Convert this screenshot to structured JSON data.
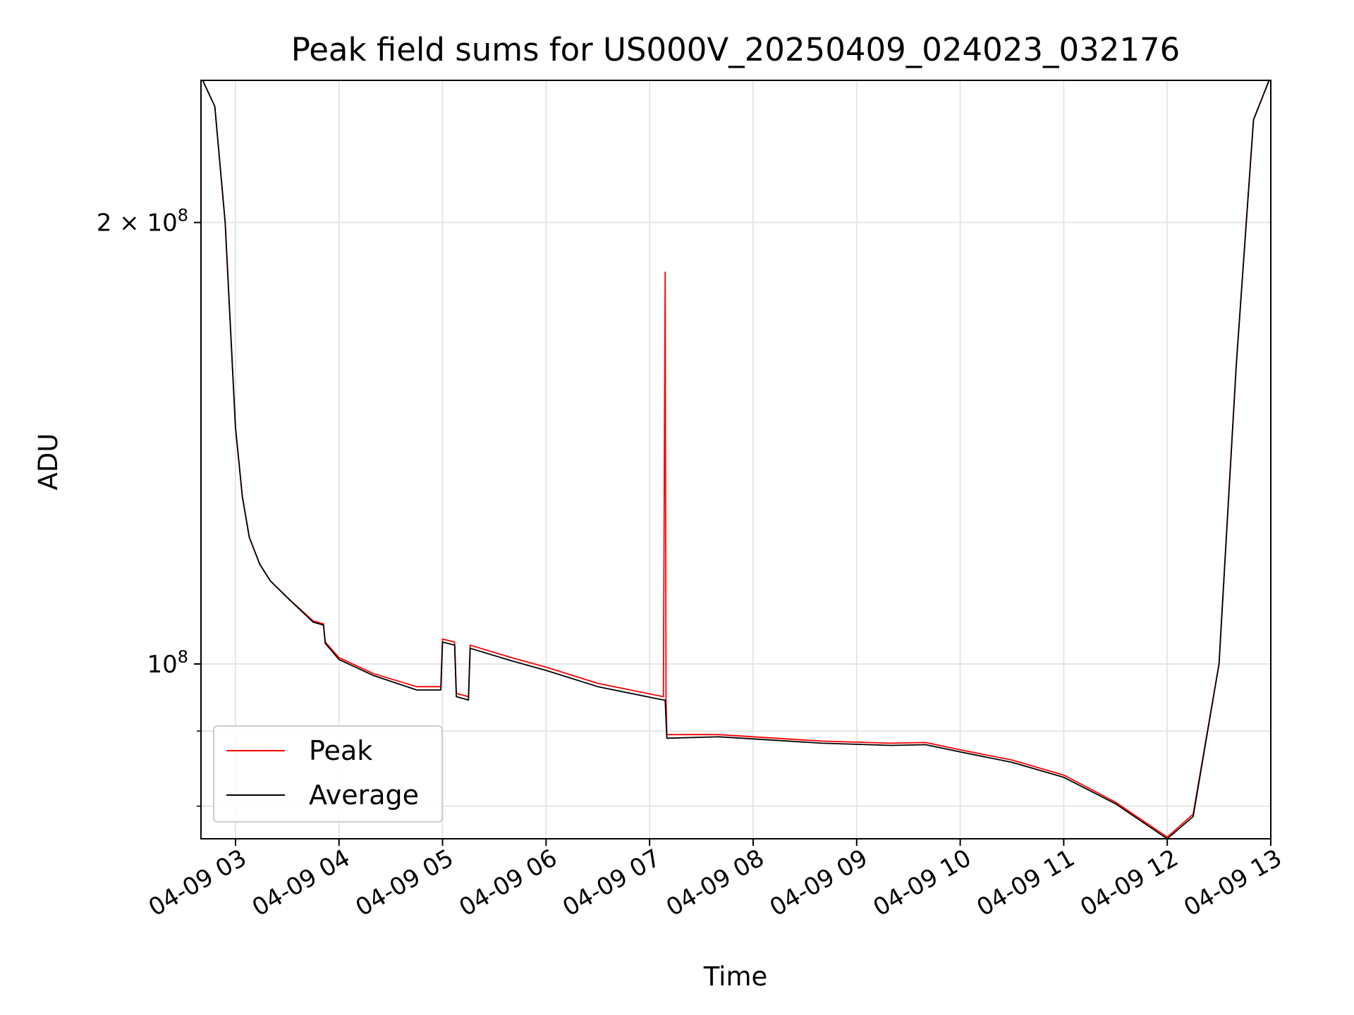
{
  "chart_data": {
    "type": "line",
    "title": "Peak field sums for US000V_20250409_024023_032176",
    "xlabel": "Time",
    "ylabel": "ADU",
    "yscale": "log",
    "ylim": [
      76000000,
      250000000
    ],
    "xlim": [
      "2025-04-09 02:40",
      "2025-04-09 13:00"
    ],
    "grid": true,
    "legend_position": "lower-left",
    "x_ticks": [
      "2025-04-09 03:00",
      "2025-04-09 04:00",
      "2025-04-09 05:00",
      "2025-04-09 06:00",
      "2025-04-09 07:00",
      "2025-04-09 08:00",
      "2025-04-09 09:00",
      "2025-04-09 10:00",
      "2025-04-09 11:00",
      "2025-04-09 12:00",
      "2025-04-09 13:00"
    ],
    "x_tick_labels": [
      "04-09 03",
      "04-09 04",
      "04-09 05",
      "04-09 06",
      "04-09 07",
      "04-09 08",
      "04-09 09",
      "04-09 10",
      "04-09 11",
      "04-09 12",
      "04-09 13"
    ],
    "y_major_ticks": [
      100000000,
      200000000
    ],
    "y_major_tick_labels": [
      {
        "base": "10",
        "exp": "8"
      },
      {
        "mantissa": "2",
        "times": "×",
        "base": "10",
        "exp": "8"
      }
    ],
    "y_minor_ticks": [
      80000000,
      90000000
    ],
    "series": [
      {
        "name": "Peak",
        "color": "#ff0000",
        "x": [
          "2025-04-09 02:41",
          "2025-04-09 02:48",
          "2025-04-09 02:54",
          "2025-04-09 03:00",
          "2025-04-09 03:04",
          "2025-04-09 03:08",
          "2025-04-09 03:14",
          "2025-04-09 03:20",
          "2025-04-09 03:30",
          "2025-04-09 03:45",
          "2025-04-09 03:51",
          "2025-04-09 03:52",
          "2025-04-09 04:00",
          "2025-04-09 04:20",
          "2025-04-09 04:45",
          "2025-04-09 04:59",
          "2025-04-09 05:00",
          "2025-04-09 05:07",
          "2025-04-09 05:08",
          "2025-04-09 05:15",
          "2025-04-09 05:16",
          "2025-04-09 05:40",
          "2025-04-09 06:00",
          "2025-04-09 06:30",
          "2025-04-09 07:08",
          "2025-04-09 07:09",
          "2025-04-09 07:09:30",
          "2025-04-09 07:10",
          "2025-04-09 07:40",
          "2025-04-09 08:00",
          "2025-04-09 08:40",
          "2025-04-09 09:20",
          "2025-04-09 09:40",
          "2025-04-09 10:00",
          "2025-04-09 10:30",
          "2025-04-09 11:00",
          "2025-04-09 11:30",
          "2025-04-09 12:00",
          "2025-04-09 12:15",
          "2025-04-09 12:30",
          "2025-04-09 12:40",
          "2025-04-09 12:50",
          "2025-04-09 12:59"
        ],
        "y": [
          250000000,
          240000000,
          200000000,
          145000000,
          130000000,
          122000000,
          117000000,
          114000000,
          111000000,
          107000000,
          106500000,
          103500000,
          101000000,
          98500000,
          96500000,
          96500000,
          104000000,
          103500000,
          95500000,
          95000000,
          103000000,
          101000000,
          99500000,
          97000000,
          95000000,
          185000000,
          95000000,
          89500000,
          89500000,
          89200000,
          88600000,
          88300000,
          88400000,
          87400000,
          86000000,
          84000000,
          80500000,
          76200000,
          79000000,
          100000000,
          160000000,
          235000000,
          250000000
        ]
      },
      {
        "name": "Average",
        "color": "#000000",
        "x": [
          "2025-04-09 02:41",
          "2025-04-09 02:48",
          "2025-04-09 02:54",
          "2025-04-09 03:00",
          "2025-04-09 03:04",
          "2025-04-09 03:08",
          "2025-04-09 03:14",
          "2025-04-09 03:20",
          "2025-04-09 03:30",
          "2025-04-09 03:45",
          "2025-04-09 03:51",
          "2025-04-09 03:52",
          "2025-04-09 04:00",
          "2025-04-09 04:20",
          "2025-04-09 04:45",
          "2025-04-09 04:59",
          "2025-04-09 05:00",
          "2025-04-09 05:07",
          "2025-04-09 05:08",
          "2025-04-09 05:15",
          "2025-04-09 05:16",
          "2025-04-09 05:40",
          "2025-04-09 06:00",
          "2025-04-09 06:30",
          "2025-04-09 07:08",
          "2025-04-09 07:09",
          "2025-04-09 07:10",
          "2025-04-09 07:40",
          "2025-04-09 08:00",
          "2025-04-09 08:40",
          "2025-04-09 09:20",
          "2025-04-09 09:40",
          "2025-04-09 10:00",
          "2025-04-09 10:30",
          "2025-04-09 11:00",
          "2025-04-09 11:30",
          "2025-04-09 12:00",
          "2025-04-09 12:15",
          "2025-04-09 12:30",
          "2025-04-09 12:40",
          "2025-04-09 12:50",
          "2025-04-09 12:59"
        ],
        "y": [
          250000000,
          240000000,
          200000000,
          145000000,
          130000000,
          122000000,
          117000000,
          114000000,
          111000000,
          106800000,
          106300000,
          103300000,
          100700000,
          98200000,
          96000000,
          96000000,
          103500000,
          103000000,
          95000000,
          94500000,
          102500000,
          100500000,
          99000000,
          96500000,
          94500000,
          94500000,
          89000000,
          89200000,
          88900000,
          88300000,
          88000000,
          88100000,
          87100000,
          85700000,
          83700000,
          80300000,
          76000000,
          78700000,
          100000000,
          160000000,
          235000000,
          250000000
        ]
      }
    ]
  }
}
